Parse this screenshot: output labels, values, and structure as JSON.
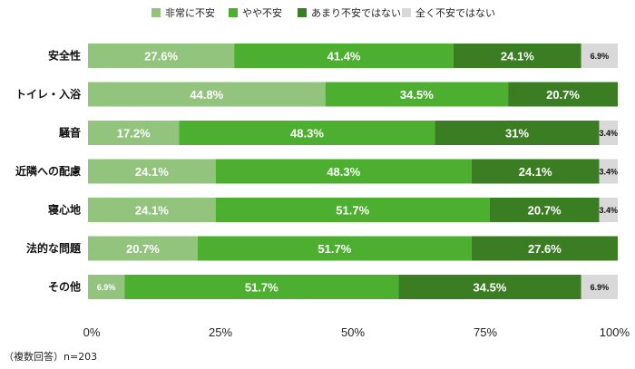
{
  "chart_data": {
    "type": "bar",
    "orientation": "horizontal",
    "stacked": "percent",
    "categories": [
      "安全性",
      "トイレ・入浴",
      "騒音",
      "近隣への配慮",
      "寝心地",
      "法的な問題",
      "その他"
    ],
    "series": [
      {
        "name": "非常に不安",
        "color": "#93c47d",
        "values": [
          27.6,
          44.8,
          17.2,
          24.1,
          24.1,
          20.7,
          6.9
        ]
      },
      {
        "name": "やや不安",
        "color": "#4caf30",
        "values": [
          41.4,
          34.5,
          48.3,
          48.3,
          51.7,
          51.7,
          51.7
        ]
      },
      {
        "name": "あまり不安ではない",
        "color": "#3a7d22",
        "values": [
          24.1,
          20.7,
          31,
          24.1,
          20.7,
          27.6,
          34.5
        ]
      },
      {
        "name": "全く不安ではない",
        "color": "#d9d9d9",
        "values": [
          6.9,
          0,
          3.4,
          3.4,
          3.4,
          0,
          6.9
        ]
      }
    ],
    "data_labels": [
      [
        "27.6%",
        "44.8%",
        "17.2%",
        "24.1%",
        "24.1%",
        "20.7%",
        "6.9%"
      ],
      [
        "41.4%",
        "34.5%",
        "48.3%",
        "48.3%",
        "51.7%",
        "51.7%",
        "51.7%"
      ],
      [
        "24.1%",
        "20.7%",
        "31%",
        "24.1%",
        "20.7%",
        "27.6%",
        "34.5%"
      ],
      [
        "6.9%",
        "",
        "3.4%",
        "3.4%",
        "3.4%",
        "",
        "6.9%"
      ]
    ],
    "x_ticks": [
      "0%",
      "25%",
      "50%",
      "75%",
      "100%"
    ],
    "xlim": [
      0,
      100
    ],
    "grid": false,
    "legend_position": "top",
    "footnote": "（複数回答）n=203"
  }
}
